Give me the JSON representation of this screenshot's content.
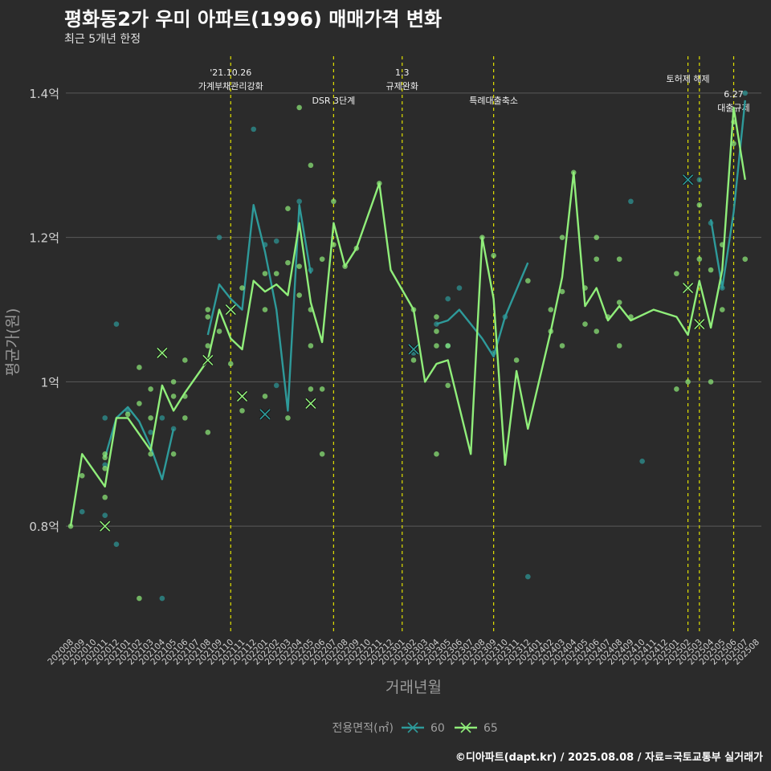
{
  "title": "평화동2가 우미 아파트(1996) 매매가격 변화",
  "subtitle": "최근 5개년 한정",
  "caption": "©디아파트(dapt.kr) / 2025.08.08 / 자료=국토교통부 실거래가",
  "colors": {
    "background": "#2b2b2b",
    "grid": "#5a5a5a",
    "event_line": "#e0e000",
    "s60": "#2e9a9a",
    "s65": "#90ee7a"
  },
  "chart_data": {
    "type": "line",
    "xlabel": "거래년월",
    "ylabel": "평균가(원)",
    "ylim": [
      0.65,
      1.46
    ],
    "yticks": [
      {
        "v": 0.8,
        "label": "0.8억"
      },
      {
        "v": 1.0,
        "label": "1억"
      },
      {
        "v": 1.2,
        "label": "1.2억"
      },
      {
        "v": 1.4,
        "label": "1.4억"
      }
    ],
    "categories": [
      "202008",
      "202009",
      "202010",
      "202011",
      "202012",
      "202101",
      "202102",
      "202103",
      "202104",
      "202105",
      "202106",
      "202107",
      "202108",
      "202109",
      "202110",
      "202111",
      "202112",
      "202201",
      "202202",
      "202203",
      "202204",
      "202205",
      "202206",
      "202207",
      "202208",
      "202209",
      "202210",
      "202211",
      "202212",
      "202301",
      "202302",
      "202303",
      "202304",
      "202305",
      "202306",
      "202307",
      "202308",
      "202309",
      "202310",
      "202311",
      "202312",
      "202401",
      "202402",
      "202403",
      "202404",
      "202405",
      "202406",
      "202407",
      "202408",
      "202409",
      "202410",
      "202411",
      "202412",
      "202501",
      "202502",
      "202503",
      "202504",
      "202505",
      "202506",
      "202507",
      "202508"
    ],
    "legend_title": "전용면적(㎡)",
    "legend_position": "bottom",
    "events": [
      {
        "x": "202110",
        "label": [
          "'21.10.26",
          "가계부채관리강화"
        ],
        "level": 0
      },
      {
        "x": "202207",
        "label": [
          "DSR 3단계"
        ],
        "level": 2
      },
      {
        "x": "202301",
        "label": [
          "1.3",
          "규제완화"
        ],
        "level": 0
      },
      {
        "x": "202309",
        "label": [
          "특례대출축소"
        ],
        "level": 2
      },
      {
        "x": "202502",
        "label": [
          "토허제 해제"
        ],
        "level": 1
      },
      {
        "x": "202503",
        "label": [],
        "level": 1
      },
      {
        "x": "202506",
        "label": [
          "6.27",
          "대출규제"
        ],
        "level": 3
      }
    ],
    "series": [
      {
        "name": "60",
        "color": "#2e9a9a",
        "line": [
          [
            [
              "202011",
              0.895
            ],
            [
              "202012",
              0.95
            ],
            [
              "202101",
              0.965
            ],
            [
              "202102",
              0.945
            ],
            [
              "202103",
              0.91
            ],
            [
              "202104",
              0.865
            ],
            [
              "202105",
              0.935
            ]
          ],
          [
            [
              "202108",
              1.065
            ],
            [
              "202109",
              1.135
            ],
            [
              "202110",
              1.115
            ],
            [
              "202111",
              1.1
            ],
            [
              "202112",
              1.245
            ],
            [
              "202201",
              1.18
            ],
            [
              "202202",
              1.1
            ],
            [
              "202203",
              0.96
            ],
            [
              "202204",
              1.245
            ],
            [
              "202205",
              1.15
            ]
          ],
          [
            [
              "202302",
              1.045
            ]
          ],
          [
            [
              "202304",
              1.08
            ],
            [
              "202305",
              1.085
            ],
            [
              "202306",
              1.1
            ],
            [
              "202307",
              1.08
            ],
            [
              "202308",
              1.06
            ],
            [
              "202309",
              1.035
            ],
            [
              "202310",
              1.09
            ],
            [
              "202312",
              1.165
            ]
          ],
          [
            [
              "202504",
              1.225
            ],
            [
              "202505",
              1.13
            ],
            [
              "202506",
              1.235
            ],
            [
              "202507",
              1.39
            ]
          ]
        ],
        "points": [
          [
            "202009",
            0.82
          ],
          [
            "202011",
            0.95
          ],
          [
            "202011",
            0.815
          ],
          [
            "202011",
            0.885
          ],
          [
            "202012",
            1.08
          ],
          [
            "202012",
            0.775
          ],
          [
            "202101",
            0.96
          ],
          [
            "202103",
            0.93
          ],
          [
            "202104",
            0.7
          ],
          [
            "202104",
            0.95
          ],
          [
            "202105",
            0.935
          ],
          [
            "202109",
            1.2
          ],
          [
            "202112",
            1.35
          ],
          [
            "202201",
            1.19
          ],
          [
            "202202",
            1.195
          ],
          [
            "202202",
            0.995
          ],
          [
            "202204",
            1.25
          ],
          [
            "202205",
            1.155
          ],
          [
            "202302",
            1.04
          ],
          [
            "202304",
            1.08
          ],
          [
            "202305",
            1.05
          ],
          [
            "202305",
            1.115
          ],
          [
            "202306",
            1.13
          ],
          [
            "202309",
            1.04
          ],
          [
            "202310",
            1.09
          ],
          [
            "202312",
            0.73
          ],
          [
            "202409",
            1.25
          ],
          [
            "202410",
            0.89
          ],
          [
            "202502",
            1.28
          ],
          [
            "202503",
            1.28
          ],
          [
            "202504",
            1.22
          ],
          [
            "202505",
            1.13
          ],
          [
            "202507",
            1.4
          ]
        ],
        "x_marks": [
          [
            "202201",
            0.955
          ],
          [
            "202302",
            1.045
          ],
          [
            "202502",
            1.28
          ]
        ]
      },
      {
        "name": "65",
        "color": "#90ee7a",
        "line": [
          [
            [
              "202008",
              0.8
            ],
            [
              "202009",
              0.9
            ],
            [
              "202011",
              0.855
            ],
            [
              "202012",
              0.95
            ],
            [
              "202101",
              0.95
            ],
            [
              "202103",
              0.905
            ],
            [
              "202104",
              0.995
            ],
            [
              "202105",
              0.96
            ],
            [
              "202106",
              0.985
            ],
            [
              "202108",
              1.03
            ],
            [
              "202109",
              1.1
            ],
            [
              "202110",
              1.06
            ],
            [
              "202111",
              1.045
            ],
            [
              "202112",
              1.14
            ],
            [
              "202201",
              1.125
            ],
            [
              "202202",
              1.135
            ],
            [
              "202203",
              1.12
            ],
            [
              "202204",
              1.22
            ],
            [
              "202205",
              1.11
            ],
            [
              "202206",
              1.055
            ],
            [
              "202207",
              1.22
            ],
            [
              "202208",
              1.16
            ],
            [
              "202209",
              1.185
            ],
            [
              "202211",
              1.275
            ],
            [
              "202212",
              1.155
            ],
            [
              "202302",
              1.1
            ],
            [
              "202303",
              1.0
            ],
            [
              "202304",
              1.025
            ],
            [
              "202305",
              1.03
            ],
            [
              "202307",
              0.9
            ],
            [
              "202308",
              1.2
            ],
            [
              "202309",
              1.115
            ],
            [
              "202310",
              0.885
            ],
            [
              "202311",
              1.015
            ],
            [
              "202312",
              0.935
            ],
            [
              "202402",
              1.07
            ],
            [
              "202403",
              1.145
            ],
            [
              "202404",
              1.29
            ],
            [
              "202405",
              1.105
            ],
            [
              "202406",
              1.13
            ],
            [
              "202407",
              1.085
            ],
            [
              "202408",
              1.105
            ],
            [
              "202409",
              1.085
            ],
            [
              "202411",
              1.1
            ],
            [
              "202501",
              1.09
            ],
            [
              "202502",
              1.065
            ],
            [
              "202503",
              1.14
            ],
            [
              "202504",
              1.075
            ],
            [
              "202505",
              1.155
            ],
            [
              "202506",
              1.38
            ],
            [
              "202507",
              1.28
            ]
          ]
        ],
        "points": [
          [
            "202008",
            0.8
          ],
          [
            "202009",
            0.87
          ],
          [
            "202011",
            0.895
          ],
          [
            "202011",
            0.9
          ],
          [
            "202011",
            0.88
          ],
          [
            "202011",
            0.84
          ],
          [
            "202101",
            0.955
          ],
          [
            "202102",
            1.02
          ],
          [
            "202102",
            0.97
          ],
          [
            "202102",
            0.7
          ],
          [
            "202103",
            0.99
          ],
          [
            "202103",
            0.95
          ],
          [
            "202103",
            0.9
          ],
          [
            "202104",
            1.04
          ],
          [
            "202105",
            0.98
          ],
          [
            "202105",
            0.9
          ],
          [
            "202105",
            1.0
          ],
          [
            "202106",
            0.98
          ],
          [
            "202106",
            0.95
          ],
          [
            "202106",
            1.03
          ],
          [
            "202108",
            1.1
          ],
          [
            "202108",
            1.05
          ],
          [
            "202108",
            1.09
          ],
          [
            "202108",
            0.93
          ],
          [
            "202109",
            1.07
          ],
          [
            "202110",
            1.025
          ],
          [
            "202111",
            0.96
          ],
          [
            "202111",
            1.13
          ],
          [
            "202201",
            1.1
          ],
          [
            "202201",
            0.98
          ],
          [
            "202201",
            1.15
          ],
          [
            "202202",
            1.15
          ],
          [
            "202203",
            1.24
          ],
          [
            "202203",
            1.165
          ],
          [
            "202203",
            0.95
          ],
          [
            "202204",
            1.38
          ],
          [
            "202204",
            1.16
          ],
          [
            "202204",
            1.12
          ],
          [
            "202205",
            1.3
          ],
          [
            "202205",
            1.1
          ],
          [
            "202205",
            1.05
          ],
          [
            "202205",
            0.99
          ],
          [
            "202206",
            1.17
          ],
          [
            "202206",
            0.99
          ],
          [
            "202206",
            0.9
          ],
          [
            "202207",
            1.25
          ],
          [
            "202207",
            1.19
          ],
          [
            "202208",
            1.16
          ],
          [
            "202209",
            1.185
          ],
          [
            "202211",
            1.275
          ],
          [
            "202302",
            1.1
          ],
          [
            "202302",
            1.03
          ],
          [
            "202304",
            1.07
          ],
          [
            "202304",
            1.09
          ],
          [
            "202304",
            1.05
          ],
          [
            "202304",
            0.9
          ],
          [
            "202305",
            0.995
          ],
          [
            "202305",
            1.05
          ],
          [
            "202308",
            1.2
          ],
          [
            "202309",
            1.175
          ],
          [
            "202311",
            1.03
          ],
          [
            "202312",
            1.14
          ],
          [
            "202402",
            1.1
          ],
          [
            "202402",
            1.07
          ],
          [
            "202403",
            1.2
          ],
          [
            "202403",
            1.125
          ],
          [
            "202403",
            1.05
          ],
          [
            "202404",
            1.29
          ],
          [
            "202405",
            1.13
          ],
          [
            "202405",
            1.08
          ],
          [
            "202406",
            1.2
          ],
          [
            "202406",
            1.17
          ],
          [
            "202406",
            1.07
          ],
          [
            "202407",
            1.09
          ],
          [
            "202408",
            1.17
          ],
          [
            "202408",
            1.11
          ],
          [
            "202408",
            1.05
          ],
          [
            "202409",
            1.09
          ],
          [
            "202501",
            1.15
          ],
          [
            "202501",
            0.99
          ],
          [
            "202502",
            1.0
          ],
          [
            "202502",
            1.13
          ],
          [
            "202503",
            1.245
          ],
          [
            "202503",
            1.17
          ],
          [
            "202504",
            1.155
          ],
          [
            "202504",
            1.0
          ],
          [
            "202505",
            1.19
          ],
          [
            "202505",
            1.1
          ],
          [
            "202506",
            1.36
          ],
          [
            "202506",
            1.33
          ],
          [
            "202507",
            1.17
          ]
        ],
        "x_marks": [
          [
            "202011",
            0.8
          ],
          [
            "202104",
            1.04
          ],
          [
            "202108",
            1.03
          ],
          [
            "202110",
            1.1
          ],
          [
            "202111",
            0.98
          ],
          [
            "202205",
            0.97
          ],
          [
            "202502",
            1.13
          ],
          [
            "202503",
            1.08
          ]
        ]
      }
    ]
  }
}
